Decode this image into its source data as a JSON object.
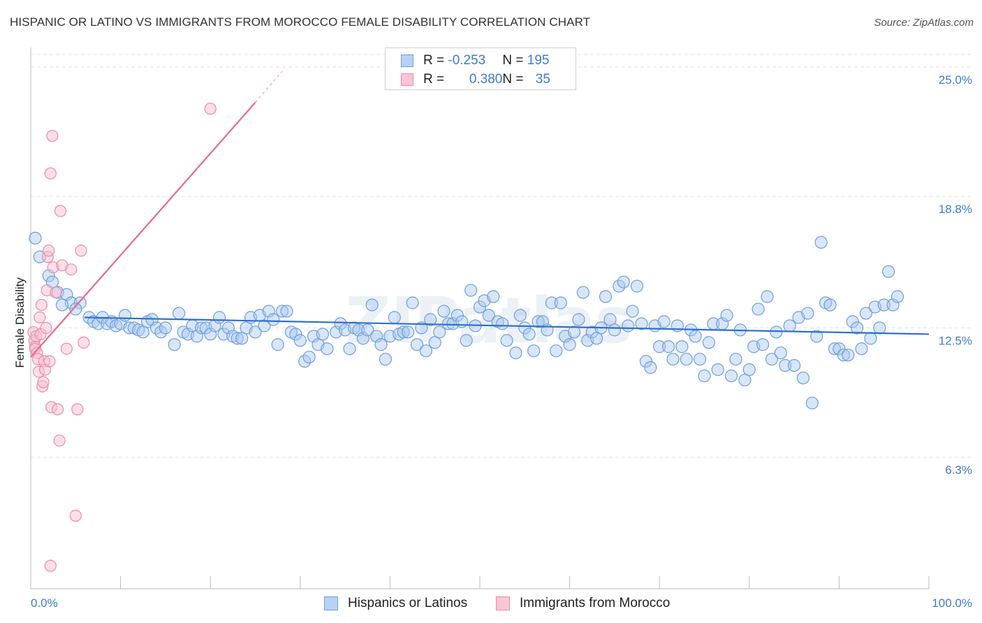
{
  "title": "HISPANIC OR LATINO VS IMMIGRANTS FROM MOROCCO FEMALE DISABILITY CORRELATION CHART",
  "source": "Source: ZipAtlas.com",
  "watermark": "ZIPatlas",
  "legend": {
    "series1": {
      "r_label": "R = ",
      "r_value": "-0.253",
      "n_label": "N = ",
      "n_value": "195"
    },
    "series2": {
      "r_label": "R = ",
      "r_value": "0.380",
      "n_label": "N = ",
      "n_value": "35"
    }
  },
  "colors": {
    "blue_fill": "#a9c8f0",
    "blue_stroke": "#6f9ee0",
    "blue_line": "#2f6fd0",
    "pink_fill": "#f7bfd0",
    "pink_stroke": "#ee8aaa",
    "pink_line": "#e86a92",
    "grid": "#e3e3e3",
    "axis_text": "#3e7ad6"
  },
  "chart_data": {
    "type": "scatter",
    "title": "HISPANIC OR LATINO VS IMMIGRANTS FROM MOROCCO FEMALE DISABILITY CORRELATION CHART",
    "xlabel": "",
    "ylabel": "Female Disability",
    "xlim": [
      0,
      100
    ],
    "ylim": [
      0,
      25.6
    ],
    "x_tick_labels": [
      "0.0%",
      "100.0%"
    ],
    "y_ticks": [
      6.3,
      12.5,
      18.8,
      25.0
    ],
    "y_tick_labels": [
      "6.3%",
      "12.5%",
      "18.8%",
      "25.0%"
    ],
    "series": [
      {
        "name": "Hispanics or Latinos",
        "trend": {
          "x": [
            6.0,
            100.0
          ],
          "y": [
            13.0,
            12.2
          ]
        },
        "points": [
          [
            0.5,
            16.8
          ],
          [
            1.0,
            15.9
          ],
          [
            2.0,
            15.0
          ],
          [
            2.4,
            14.7
          ],
          [
            3.0,
            14.2
          ],
          [
            4.0,
            14.1
          ],
          [
            4.5,
            13.7
          ],
          [
            5.5,
            13.7
          ],
          [
            3.5,
            13.6
          ],
          [
            5.0,
            13.4
          ],
          [
            6.5,
            13.0
          ],
          [
            7.0,
            12.8
          ],
          [
            7.5,
            12.7
          ],
          [
            8.0,
            13.0
          ],
          [
            8.5,
            12.7
          ],
          [
            9.0,
            12.8
          ],
          [
            9.5,
            12.6
          ],
          [
            10.0,
            12.7
          ],
          [
            10.5,
            13.1
          ],
          [
            11.0,
            12.5
          ],
          [
            11.5,
            12.5
          ],
          [
            12.0,
            12.4
          ],
          [
            12.5,
            12.3
          ],
          [
            13.0,
            12.8
          ],
          [
            13.5,
            12.9
          ],
          [
            14.0,
            12.5
          ],
          [
            14.5,
            12.3
          ],
          [
            15.0,
            12.5
          ],
          [
            16.0,
            11.7
          ],
          [
            16.5,
            13.2
          ],
          [
            17.0,
            12.3
          ],
          [
            17.5,
            12.2
          ],
          [
            18.0,
            12.6
          ],
          [
            18.5,
            12.1
          ],
          [
            19.0,
            12.5
          ],
          [
            19.5,
            12.5
          ],
          [
            20.0,
            12.2
          ],
          [
            20.5,
            12.6
          ],
          [
            21.0,
            13.0
          ],
          [
            21.5,
            12.2
          ],
          [
            22.0,
            12.5
          ],
          [
            22.5,
            12.1
          ],
          [
            23.0,
            12.0
          ],
          [
            23.5,
            12.0
          ],
          [
            24.0,
            12.5
          ],
          [
            24.5,
            13.0
          ],
          [
            25.0,
            12.3
          ],
          [
            25.5,
            13.1
          ],
          [
            26.0,
            12.6
          ],
          [
            26.5,
            13.3
          ],
          [
            27.0,
            12.9
          ],
          [
            27.5,
            11.7
          ],
          [
            28.0,
            13.3
          ],
          [
            28.5,
            13.3
          ],
          [
            29.0,
            12.3
          ],
          [
            29.5,
            12.2
          ],
          [
            30.0,
            11.9
          ],
          [
            30.5,
            10.9
          ],
          [
            31.0,
            11.1
          ],
          [
            31.5,
            12.1
          ],
          [
            32.0,
            11.7
          ],
          [
            32.5,
            12.2
          ],
          [
            33.0,
            11.5
          ],
          [
            34.0,
            12.3
          ],
          [
            34.5,
            12.7
          ],
          [
            35.0,
            12.4
          ],
          [
            35.5,
            11.5
          ],
          [
            36.0,
            12.5
          ],
          [
            36.5,
            12.4
          ],
          [
            37.0,
            12.0
          ],
          [
            37.5,
            12.4
          ],
          [
            38.0,
            13.6
          ],
          [
            38.5,
            12.1
          ],
          [
            39.0,
            11.7
          ],
          [
            39.5,
            11.0
          ],
          [
            40.0,
            12.1
          ],
          [
            40.5,
            13.0
          ],
          [
            41.0,
            12.2
          ],
          [
            41.5,
            12.3
          ],
          [
            42.0,
            12.3
          ],
          [
            42.5,
            13.7
          ],
          [
            43.0,
            11.7
          ],
          [
            43.5,
            12.5
          ],
          [
            44.0,
            11.4
          ],
          [
            44.5,
            12.9
          ],
          [
            45.0,
            11.8
          ],
          [
            45.5,
            12.3
          ],
          [
            46.0,
            13.3
          ],
          [
            46.5,
            12.7
          ],
          [
            47.0,
            12.7
          ],
          [
            47.5,
            13.1
          ],
          [
            48.0,
            12.8
          ],
          [
            48.5,
            11.9
          ],
          [
            49.0,
            14.3
          ],
          [
            49.5,
            12.6
          ],
          [
            50.0,
            13.5
          ],
          [
            50.5,
            13.8
          ],
          [
            51.0,
            13.1
          ],
          [
            51.5,
            14.0
          ],
          [
            52.0,
            12.8
          ],
          [
            52.5,
            12.7
          ],
          [
            53.0,
            11.9
          ],
          [
            54.0,
            11.3
          ],
          [
            54.5,
            13.1
          ],
          [
            55.0,
            12.5
          ],
          [
            55.5,
            12.2
          ],
          [
            56.0,
            11.4
          ],
          [
            56.5,
            12.8
          ],
          [
            57.0,
            12.8
          ],
          [
            57.5,
            12.4
          ],
          [
            58.0,
            13.7
          ],
          [
            58.5,
            11.4
          ],
          [
            59.0,
            13.7
          ],
          [
            59.5,
            12.1
          ],
          [
            60.0,
            11.7
          ],
          [
            60.5,
            12.3
          ],
          [
            61.0,
            12.9
          ],
          [
            61.5,
            14.2
          ],
          [
            62.0,
            11.9
          ],
          [
            62.5,
            12.3
          ],
          [
            63.0,
            12.0
          ],
          [
            63.5,
            12.5
          ],
          [
            64.0,
            14.0
          ],
          [
            64.5,
            12.9
          ],
          [
            65.0,
            12.4
          ],
          [
            65.5,
            14.5
          ],
          [
            66.0,
            14.7
          ],
          [
            66.5,
            12.6
          ],
          [
            67.0,
            13.3
          ],
          [
            67.5,
            14.5
          ],
          [
            68.0,
            12.7
          ],
          [
            68.5,
            10.9
          ],
          [
            69.0,
            10.6
          ],
          [
            69.5,
            12.6
          ],
          [
            70.0,
            11.6
          ],
          [
            70.5,
            12.8
          ],
          [
            71.0,
            11.6
          ],
          [
            71.5,
            11.0
          ],
          [
            72.0,
            12.6
          ],
          [
            72.5,
            11.6
          ],
          [
            73.0,
            11.0
          ],
          [
            73.5,
            12.4
          ],
          [
            74.0,
            12.1
          ],
          [
            74.5,
            11.0
          ],
          [
            75.0,
            10.2
          ],
          [
            75.5,
            11.8
          ],
          [
            76.0,
            12.7
          ],
          [
            76.5,
            10.5
          ],
          [
            77.0,
            12.7
          ],
          [
            77.5,
            13.1
          ],
          [
            78.0,
            10.2
          ],
          [
            78.5,
            11.0
          ],
          [
            79.0,
            12.4
          ],
          [
            79.5,
            10.0
          ],
          [
            80.0,
            10.5
          ],
          [
            80.5,
            11.6
          ],
          [
            81.0,
            13.4
          ],
          [
            81.5,
            11.7
          ],
          [
            82.0,
            14.0
          ],
          [
            82.5,
            11.0
          ],
          [
            83.0,
            12.3
          ],
          [
            83.5,
            11.3
          ],
          [
            84.0,
            10.7
          ],
          [
            84.5,
            12.6
          ],
          [
            85.0,
            10.7
          ],
          [
            85.5,
            13.0
          ],
          [
            86.0,
            10.1
          ],
          [
            86.5,
            13.2
          ],
          [
            87.0,
            8.9
          ],
          [
            87.5,
            12.1
          ],
          [
            88.0,
            16.6
          ],
          [
            88.5,
            13.7
          ],
          [
            89.0,
            13.6
          ],
          [
            89.5,
            11.5
          ],
          [
            90.0,
            11.5
          ],
          [
            90.5,
            11.2
          ],
          [
            91.0,
            11.2
          ],
          [
            91.5,
            12.8
          ],
          [
            92.0,
            12.5
          ],
          [
            92.5,
            11.5
          ],
          [
            93.0,
            13.2
          ],
          [
            93.5,
            12.0
          ],
          [
            94.0,
            13.5
          ],
          [
            94.5,
            12.5
          ],
          [
            95.0,
            13.6
          ],
          [
            95.5,
            15.2
          ],
          [
            96.0,
            13.6
          ],
          [
            96.5,
            14.0
          ]
        ]
      },
      {
        "name": "Immigrants from Morocco",
        "trend": {
          "x": [
            0.0,
            25.0
          ],
          "y": [
            11.1,
            23.3
          ]
        },
        "trend_dashed": {
          "x": [
            25.0,
            28.0
          ],
          "y": [
            23.3,
            24.8
          ]
        },
        "points": [
          [
            0.3,
            12.3
          ],
          [
            0.4,
            11.9
          ],
          [
            0.5,
            11.6
          ],
          [
            0.5,
            11.5
          ],
          [
            0.6,
            12.1
          ],
          [
            0.7,
            11.3
          ],
          [
            0.8,
            11.0
          ],
          [
            0.9,
            10.4
          ],
          [
            1.0,
            13.0
          ],
          [
            1.1,
            12.2
          ],
          [
            1.2,
            13.6
          ],
          [
            1.3,
            9.7
          ],
          [
            1.4,
            9.9
          ],
          [
            1.5,
            10.9
          ],
          [
            1.6,
            10.5
          ],
          [
            1.7,
            12.5
          ],
          [
            1.8,
            14.3
          ],
          [
            1.9,
            15.9
          ],
          [
            2.0,
            16.2
          ],
          [
            2.1,
            10.9
          ],
          [
            2.2,
            19.9
          ],
          [
            2.3,
            8.7
          ],
          [
            2.4,
            21.7
          ],
          [
            2.5,
            15.4
          ],
          [
            2.8,
            14.2
          ],
          [
            3.0,
            8.6
          ],
          [
            3.2,
            7.1
          ],
          [
            3.3,
            18.1
          ],
          [
            3.5,
            15.5
          ],
          [
            4.0,
            11.5
          ],
          [
            4.5,
            15.3
          ],
          [
            5.0,
            3.5
          ],
          [
            5.2,
            8.6
          ],
          [
            5.6,
            16.2
          ],
          [
            5.9,
            11.8
          ],
          [
            2.2,
            1.1
          ],
          [
            20.0,
            23.0
          ]
        ]
      }
    ]
  },
  "bottom_legend": {
    "series1": "Hispanics or Latinos",
    "series2": "Immigrants from Morocco"
  }
}
